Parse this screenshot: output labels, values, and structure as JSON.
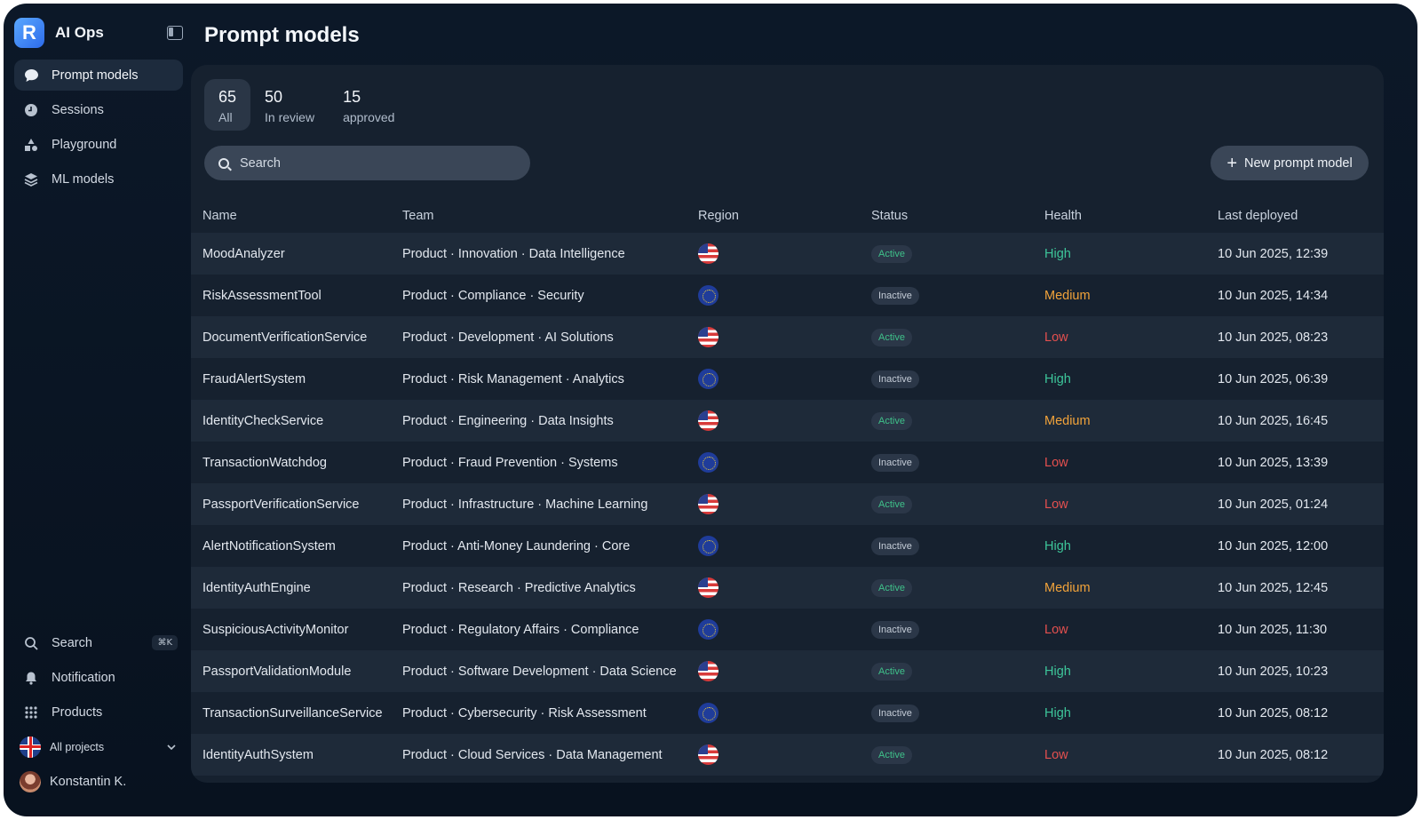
{
  "app": {
    "name": "AI Ops",
    "logo_letter": "R"
  },
  "sidebar": {
    "items": [
      {
        "label": "Prompt models",
        "icon": "chat-bubble-icon",
        "active": true
      },
      {
        "label": "Sessions",
        "icon": "clock-icon",
        "active": false
      },
      {
        "label": "Playground",
        "icon": "shapes-icon",
        "active": false
      },
      {
        "label": "ML models",
        "icon": "layers-icon",
        "active": false
      }
    ],
    "bottom": {
      "search_label": "Search",
      "search_shortcut": "⌘K",
      "notification_label": "Notification",
      "products_label": "Products",
      "projects_label": "All projects",
      "user_name": "Konstantin K."
    }
  },
  "page": {
    "title": "Prompt models"
  },
  "stats": [
    {
      "count": "65",
      "label": "All",
      "active": true
    },
    {
      "count": "50",
      "label": "In review",
      "active": false
    },
    {
      "count": "15",
      "label": "approved",
      "active": false
    }
  ],
  "search": {
    "placeholder": "Search"
  },
  "toolbar": {
    "new_label": "New prompt model"
  },
  "table": {
    "columns": [
      "Name",
      "Team",
      "Region",
      "Status",
      "Health",
      "Last deployed"
    ],
    "rows": [
      {
        "name": "MoodAnalyzer",
        "team": "Product · Innovation · Data Intelligence",
        "region": "US",
        "status": "Active",
        "health": "High",
        "deployed": "10 Jun 2025, 12:39"
      },
      {
        "name": "RiskAssessmentTool",
        "team": "Product · Compliance · Security",
        "region": "EU",
        "status": "Inactive",
        "health": "Medium",
        "deployed": "10 Jun 2025, 14:34"
      },
      {
        "name": "DocumentVerificationService",
        "team": "Product · Development · AI Solutions",
        "region": "US",
        "status": "Active",
        "health": "Low",
        "deployed": "10 Jun 2025, 08:23"
      },
      {
        "name": "FraudAlertSystem",
        "team": "Product · Risk Management · Analytics",
        "region": "EU",
        "status": "Inactive",
        "health": "High",
        "deployed": "10 Jun 2025, 06:39"
      },
      {
        "name": "IdentityCheckService",
        "team": "Product · Engineering · Data Insights",
        "region": "US",
        "status": "Active",
        "health": "Medium",
        "deployed": "10 Jun 2025, 16:45"
      },
      {
        "name": "TransactionWatchdog",
        "team": "Product · Fraud Prevention · Systems",
        "region": "EU",
        "status": "Inactive",
        "health": "Low",
        "deployed": "10 Jun 2025, 13:39"
      },
      {
        "name": "PassportVerificationService",
        "team": "Product · Infrastructure · Machine Learning",
        "region": "US",
        "status": "Active",
        "health": "Low",
        "deployed": "10 Jun 2025, 01:24"
      },
      {
        "name": "AlertNotificationSystem",
        "team": "Product · Anti-Money Laundering · Core",
        "region": "EU",
        "status": "Inactive",
        "health": "High",
        "deployed": "10 Jun 2025, 12:00"
      },
      {
        "name": "IdentityAuthEngine",
        "team": "Product · Research · Predictive Analytics",
        "region": "US",
        "status": "Active",
        "health": "Medium",
        "deployed": "10 Jun 2025, 12:45"
      },
      {
        "name": "SuspiciousActivityMonitor",
        "team": "Product · Regulatory Affairs · Compliance",
        "region": "EU",
        "status": "Inactive",
        "health": "Low",
        "deployed": "10 Jun 2025, 11:30"
      },
      {
        "name": "PassportValidationModule",
        "team": "Product · Software Development · Data Science",
        "region": "US",
        "status": "Active",
        "health": "High",
        "deployed": "10 Jun 2025, 10:23"
      },
      {
        "name": "TransactionSurveillanceService",
        "team": "Product · Cybersecurity · Risk Assessment",
        "region": "EU",
        "status": "Inactive",
        "health": "High",
        "deployed": "10 Jun 2025, 08:12"
      },
      {
        "name": "IdentityAuthSystem",
        "team": "Product · Cloud Services · Data Management",
        "region": "US",
        "status": "Active",
        "health": "Low",
        "deployed": "10 Jun 2025, 08:12"
      }
    ]
  },
  "colors": {
    "health_high": "#3dc69a",
    "health_medium": "#f2a33a",
    "health_low": "#e4504f",
    "status_active": "#3fc18a"
  }
}
